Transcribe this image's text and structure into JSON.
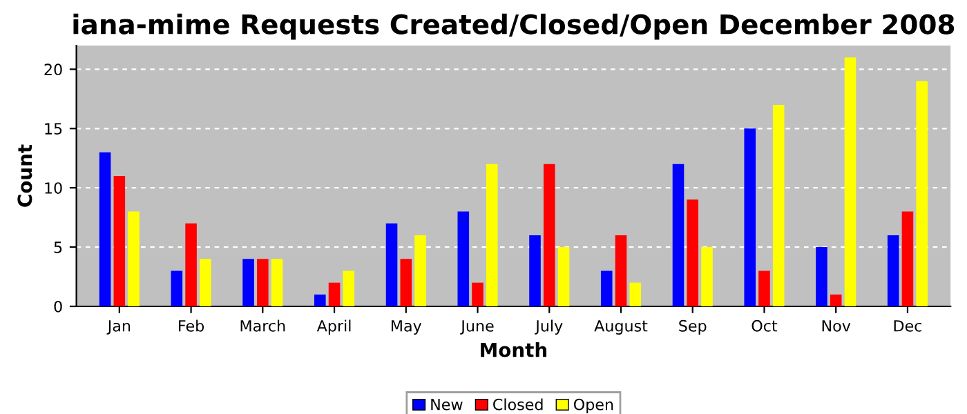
{
  "chart_data": {
    "type": "bar",
    "title": "iana-mime Requests Created/Closed/Open December 2008",
    "xlabel": "Month",
    "ylabel": "Count",
    "categories": [
      "Jan",
      "Feb",
      "March",
      "April",
      "May",
      "June",
      "July",
      "August",
      "Sep",
      "Oct",
      "Nov",
      "Dec"
    ],
    "series": [
      {
        "name": "New",
        "color": "#0000ff",
        "values": [
          13,
          3,
          4,
          1,
          7,
          8,
          6,
          3,
          12,
          15,
          5,
          6
        ]
      },
      {
        "name": "Closed",
        "color": "#ff0000",
        "values": [
          11,
          7,
          4,
          2,
          4,
          2,
          12,
          6,
          9,
          3,
          1,
          8
        ]
      },
      {
        "name": "Open",
        "color": "#ffff00",
        "values": [
          8,
          4,
          4,
          3,
          6,
          12,
          5,
          2,
          5,
          17,
          21,
          19
        ]
      }
    ],
    "ylim": [
      0,
      22
    ],
    "yticks": [
      0,
      5,
      10,
      15,
      20
    ],
    "grid": "y",
    "legend": "bottom"
  }
}
